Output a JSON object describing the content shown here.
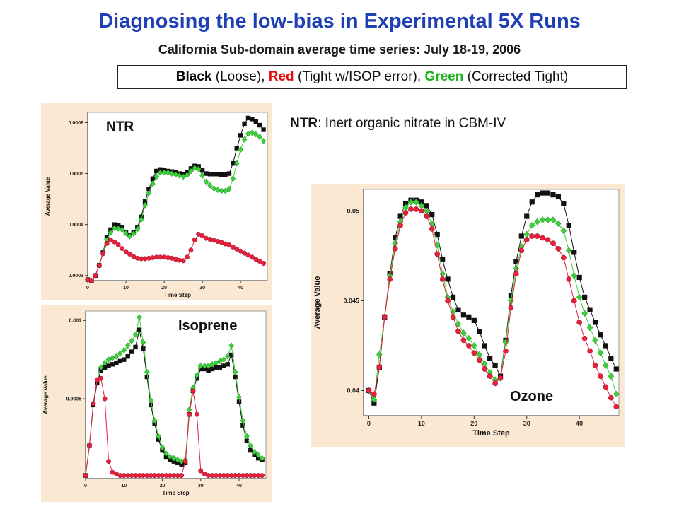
{
  "title": "Diagnosing the low-bias in Experimental 5X Runs",
  "subtitle": "California Sub-domain average time series: July 18-19, 2006",
  "legend": {
    "black_word": "Black",
    "black_rest": " (Loose), ",
    "red_word": "Red",
    "red_rest": " (Tight w/ISOP error), ",
    "green_word": "Green",
    "green_rest": " (Corrected Tight)"
  },
  "note": {
    "term": "NTR",
    "rest": ": Inert organic nitrate in CBM-IV"
  },
  "colors": {
    "black_series": "#111111",
    "red_series": "#e8203c",
    "green_series": "#3ad23a",
    "panel_bg": "#fbe8d3"
  },
  "chart_data": [
    {
      "type": "scatter",
      "label": "NTR",
      "xlabel": "Time Step",
      "ylabel": "Average Value",
      "xlim": [
        0,
        47
      ],
      "ylim": [
        0.00029,
        0.00062
      ],
      "xticks": [
        0,
        10,
        20,
        30,
        40
      ],
      "xtick_labels": [
        "0",
        "10",
        "20",
        "30",
        "40"
      ],
      "yticks": [
        0.0003,
        0.0004,
        0.0005,
        0.0006
      ],
      "ytick_labels": [
        "0.0003",
        "0.0004",
        "0.0005",
        "0.0006"
      ],
      "x": [
        0,
        1,
        2,
        3,
        4,
        5,
        6,
        7,
        8,
        9,
        10,
        11,
        12,
        13,
        14,
        15,
        16,
        17,
        18,
        19,
        20,
        21,
        22,
        23,
        24,
        25,
        26,
        27,
        28,
        29,
        30,
        31,
        32,
        33,
        34,
        35,
        36,
        37,
        38,
        39,
        40,
        41,
        42,
        43,
        44,
        45,
        46
      ],
      "series": [
        {
          "color": "black",
          "marker": "square",
          "values": [
            0.000292,
            0.00029,
            0.0003,
            0.00032,
            0.000345,
            0.000375,
            0.00039,
            0.0004,
            0.000398,
            0.000395,
            0.000385,
            0.00038,
            0.000385,
            0.000395,
            0.000415,
            0.000445,
            0.00047,
            0.00049,
            0.000505,
            0.000508,
            0.000506,
            0.000505,
            0.000504,
            0.000503,
            0.0005,
            0.000498,
            0.000502,
            0.00051,
            0.000515,
            0.000514,
            0.000506,
            0.0005,
            0.000499,
            0.000499,
            0.000499,
            0.000498,
            0.000498,
            0.0005,
            0.00052,
            0.00055,
            0.000575,
            0.000598,
            0.000609,
            0.000607,
            0.000602,
            0.000595,
            0.000586
          ]
        },
        {
          "color": "green",
          "marker": "diamond",
          "values": [
            0.000292,
            0.00029,
            0.0003,
            0.00032,
            0.000343,
            0.00037,
            0.000384,
            0.000393,
            0.000392,
            0.00039,
            0.000383,
            0.000377,
            0.000382,
            0.000391,
            0.00041,
            0.000438,
            0.000462,
            0.00048,
            0.000494,
            0.000502,
            0.000502,
            0.000502,
            0.0005,
            0.000498,
            0.000496,
            0.000494,
            0.000497,
            0.000505,
            0.000511,
            0.000509,
            0.000496,
            0.000484,
            0.000477,
            0.000471,
            0.000468,
            0.000466,
            0.000466,
            0.00047,
            0.00049,
            0.00052,
            0.000547,
            0.000567,
            0.000578,
            0.00058,
            0.000577,
            0.000572,
            0.000564
          ]
        },
        {
          "color": "red",
          "marker": "circle",
          "values": [
            0.000292,
            0.00029,
            0.0003,
            0.00032,
            0.000343,
            0.000363,
            0.00037,
            0.000366,
            0.00036,
            0.000353,
            0.000347,
            0.000342,
            0.000337,
            0.000334,
            0.000333,
            0.000333,
            0.000334,
            0.000335,
            0.000336,
            0.000336,
            0.000336,
            0.000335,
            0.000334,
            0.000332,
            0.00033,
            0.000329,
            0.000336,
            0.00035,
            0.00037,
            0.000381,
            0.000378,
            0.000373,
            0.000371,
            0.000369,
            0.000367,
            0.000365,
            0.000362,
            0.00036,
            0.000356,
            0.000352,
            0.000348,
            0.000344,
            0.00034,
            0.000336,
            0.000332,
            0.000328,
            0.000324
          ]
        }
      ]
    },
    {
      "type": "scatter",
      "label": "Isoprene",
      "xlabel": "Time Step",
      "ylabel": "Average Value",
      "xlim": [
        0,
        47
      ],
      "ylim": [
        -1e-05,
        0.00106
      ],
      "xticks": [
        0,
        10,
        20,
        30,
        40
      ],
      "xtick_labels": [
        "0",
        "10",
        "20",
        "30",
        "40"
      ],
      "yticks": [
        0.0005,
        0.001
      ],
      "ytick_labels": [
        "0.0005",
        "0.001"
      ],
      "x": [
        0,
        1,
        2,
        3,
        4,
        5,
        6,
        7,
        8,
        9,
        10,
        11,
        12,
        13,
        14,
        15,
        16,
        17,
        18,
        19,
        20,
        21,
        22,
        23,
        24,
        25,
        26,
        27,
        28,
        29,
        30,
        31,
        32,
        33,
        34,
        35,
        36,
        37,
        38,
        39,
        40,
        41,
        42,
        43,
        44,
        45,
        46
      ],
      "series": [
        {
          "color": "black",
          "marker": "square",
          "values": [
            1e-05,
            0.0002,
            0.00046,
            0.0006,
            0.00068,
            0.0007,
            0.00071,
            0.00072,
            0.00073,
            0.00074,
            0.00075,
            0.00077,
            0.0008,
            0.00083,
            0.00094,
            0.00082,
            0.00064,
            0.00046,
            0.00034,
            0.00024,
            0.00017,
            0.00013,
            0.00011,
            0.0001,
            9e-05,
            8e-05,
            9e-05,
            0.0004,
            0.00055,
            0.00063,
            0.00069,
            0.00069,
            0.00068,
            0.00069,
            0.0007,
            0.0007,
            0.00071,
            0.00072,
            0.00078,
            0.00064,
            0.00048,
            0.00033,
            0.00023,
            0.00017,
            0.00014,
            0.00012,
            0.00011
          ]
        },
        {
          "color": "green",
          "marker": "diamond",
          "values": [
            1e-05,
            0.0002,
            0.00047,
            0.00062,
            0.0007,
            0.00073,
            0.00075,
            0.00076,
            0.00077,
            0.00079,
            0.00081,
            0.00084,
            0.00087,
            0.00091,
            0.00102,
            0.00086,
            0.00067,
            0.00049,
            0.00036,
            0.00026,
            0.00019,
            0.00015,
            0.00013,
            0.00012,
            0.00011,
            0.0001,
            0.00011,
            0.00043,
            0.00057,
            0.00065,
            0.00071,
            0.00071,
            0.00071,
            0.00072,
            0.00073,
            0.00074,
            0.00075,
            0.00077,
            0.00084,
            0.00067,
            0.00051,
            0.00036,
            0.00026,
            0.0002,
            0.00016,
            0.00014,
            0.00012
          ]
        },
        {
          "color": "red",
          "marker": "circle",
          "values": [
            1e-05,
            0.0002,
            0.00047,
            0.00062,
            0.00063,
            0.0005,
            0.0001,
            3e-05,
            2e-05,
            1e-05,
            1e-05,
            1e-05,
            1e-05,
            1e-05,
            1e-05,
            1e-05,
            1e-05,
            1e-05,
            1e-05,
            1e-05,
            1e-05,
            1e-05,
            1e-05,
            1e-05,
            1e-05,
            1e-05,
            0.0001,
            0.0004,
            0.00055,
            0.0004,
            4e-05,
            2e-05,
            1e-05,
            1e-05,
            1e-05,
            1e-05,
            1e-05,
            1e-05,
            1e-05,
            1e-05,
            1e-05,
            1e-05,
            1e-05,
            1e-05,
            1e-05,
            1e-05,
            1e-05
          ]
        }
      ]
    },
    {
      "type": "scatter",
      "label": "Ozone",
      "xlabel": "Time Step",
      "ylabel": "Average Value",
      "xlim": [
        -1,
        47.5
      ],
      "ylim": [
        0.0386,
        0.0512
      ],
      "xticks": [
        0,
        10,
        20,
        30,
        40
      ],
      "xtick_labels": [
        "0",
        "10",
        "20",
        "30",
        "40"
      ],
      "yticks": [
        0.04,
        0.045,
        0.05
      ],
      "ytick_labels": [
        "0.04",
        "0.045",
        "0.05"
      ],
      "x": [
        0,
        1,
        2,
        3,
        4,
        5,
        6,
        7,
        8,
        9,
        10,
        11,
        12,
        13,
        14,
        15,
        16,
        17,
        18,
        19,
        20,
        21,
        22,
        23,
        24,
        25,
        26,
        27,
        28,
        29,
        30,
        31,
        32,
        33,
        34,
        35,
        36,
        37,
        38,
        39,
        40,
        41,
        42,
        43,
        44,
        45,
        46,
        47
      ],
      "series": [
        {
          "color": "black",
          "marker": "square",
          "values": [
            0.04,
            0.0393,
            0.0413,
            0.0441,
            0.0465,
            0.0485,
            0.0497,
            0.0504,
            0.0506,
            0.0506,
            0.0505,
            0.0503,
            0.0498,
            0.0487,
            0.0473,
            0.0462,
            0.0452,
            0.0445,
            0.0442,
            0.0441,
            0.0439,
            0.0433,
            0.0425,
            0.0418,
            0.0414,
            0.0408,
            0.0428,
            0.0453,
            0.0472,
            0.0486,
            0.0497,
            0.0505,
            0.0509,
            0.051,
            0.051,
            0.0509,
            0.0508,
            0.0504,
            0.0492,
            0.0477,
            0.0463,
            0.0452,
            0.0445,
            0.0438,
            0.0431,
            0.0425,
            0.0418,
            0.0412
          ]
        },
        {
          "color": "green",
          "marker": "diamond",
          "values": [
            0.04,
            0.0395,
            0.042,
            0.0441,
            0.0464,
            0.0482,
            0.0494,
            0.0502,
            0.0505,
            0.0505,
            0.0503,
            0.05,
            0.0493,
            0.0481,
            0.0465,
            0.0452,
            0.0444,
            0.0437,
            0.0432,
            0.0429,
            0.0425,
            0.042,
            0.0415,
            0.041,
            0.0406,
            0.0407,
            0.0427,
            0.045,
            0.0468,
            0.048,
            0.0487,
            0.0492,
            0.0494,
            0.0495,
            0.0495,
            0.0495,
            0.0493,
            0.0489,
            0.0478,
            0.0464,
            0.0452,
            0.0443,
            0.0435,
            0.0428,
            0.0421,
            0.0414,
            0.0408,
            0.0398
          ]
        },
        {
          "color": "red",
          "marker": "circle",
          "values": [
            0.04,
            0.0398,
            0.0413,
            0.0441,
            0.0462,
            0.0479,
            0.0492,
            0.0499,
            0.0501,
            0.0501,
            0.05,
            0.0497,
            0.049,
            0.0476,
            0.0462,
            0.045,
            0.0441,
            0.0433,
            0.0428,
            0.0425,
            0.0421,
            0.0417,
            0.0412,
            0.0408,
            0.0404,
            0.0407,
            0.0422,
            0.0446,
            0.0465,
            0.0478,
            0.0484,
            0.0486,
            0.0486,
            0.0485,
            0.0484,
            0.0482,
            0.0479,
            0.0474,
            0.0462,
            0.045,
            0.0438,
            0.0429,
            0.0422,
            0.0414,
            0.0408,
            0.0402,
            0.0396,
            0.0391
          ]
        }
      ]
    }
  ]
}
